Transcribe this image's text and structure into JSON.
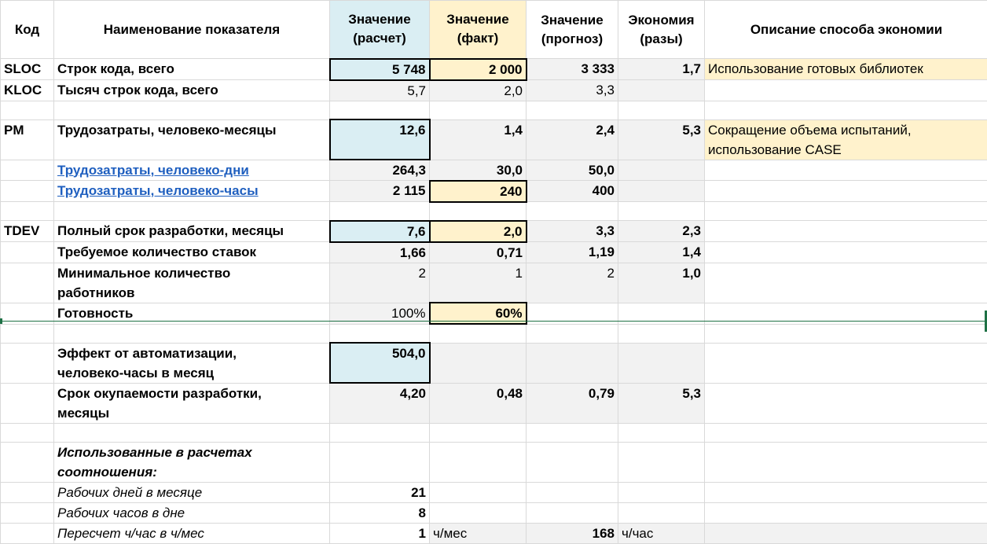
{
  "header": {
    "code": "Код",
    "name": "Наименование показателя",
    "calc": "Значение (расчет)",
    "fact": "Значение (факт)",
    "forecast": "Значение (прогноз)",
    "economy": "Экономия (разы)",
    "description": "Описание способа экономии"
  },
  "rows": {
    "sloc": {
      "code": "SLOC",
      "name": "Строк кода, всего",
      "calc": "5 748",
      "fact": "2 000",
      "forecast": "3 333",
      "economy": "1,7",
      "description": "Использование готовых библиотек"
    },
    "kloc": {
      "code": "KLOC",
      "name": "Тысяч строк кода, всего",
      "calc": "5,7",
      "fact": "2,0",
      "forecast": "3,3"
    },
    "pm": {
      "code": "PM",
      "name": "Трудозатраты, человеко-месяцы",
      "calc": "12,6",
      "fact": "1,4",
      "forecast": "2,4",
      "economy": "5,3",
      "description_line1": "Сокращение объема испытаний,",
      "description_line2": "использование CASE"
    },
    "pd": {
      "name": "Трудозатраты, человеко-дни",
      "calc": "264,3",
      "fact": "30,0",
      "forecast": "50,0"
    },
    "ph": {
      "name": "Трудозатраты, человеко-часы",
      "calc": "2 115",
      "fact": "240",
      "forecast": "400"
    },
    "tdev": {
      "code": "TDEV",
      "name": "Полный срок разработки, месяцы",
      "calc": "7,6",
      "fact": "2,0",
      "forecast": "3,3",
      "economy": "2,3"
    },
    "staff": {
      "name": "Требуемое количество ставок",
      "calc": "1,66",
      "fact": "0,71",
      "forecast": "1,19",
      "economy": "1,4"
    },
    "minworkers": {
      "name_line1": "Минимальное количество",
      "name_line2": "работников",
      "calc": "2",
      "fact": "1",
      "forecast": "2",
      "economy": "1,0"
    },
    "ready": {
      "name": "Готовность",
      "calc": "100%",
      "fact": "60%"
    },
    "effect": {
      "name_line1": "Эффект от автоматизации,",
      "name_line2": "человеко-часы в месяц",
      "calc": "504,0"
    },
    "payback": {
      "name_line1": "Срок окупаемости разработки,",
      "name_line2": "месяцы",
      "calc": "4,20",
      "fact": "0,48",
      "forecast": "0,79",
      "economy": "5,3"
    },
    "ratios": {
      "title_line1": "Использованные в расчетах",
      "title_line2": "соотношения:"
    },
    "workdays": {
      "name": "Рабочих дней в месяце",
      "calc": "21"
    },
    "workhours": {
      "name": "Рабочих часов в дне",
      "calc": "8"
    },
    "convert": {
      "name": "Пересчет ч/час в ч/мес",
      "calc": "1",
      "fact": "ч/мес",
      "forecast": "168",
      "economy": "ч/час"
    }
  },
  "colors": {
    "calc_fill": "#daeef3",
    "fact_fill": "#fff2cc",
    "grey_fill": "#f2f2f2",
    "link": "#1f5fbf",
    "selection": "#1e7145"
  }
}
